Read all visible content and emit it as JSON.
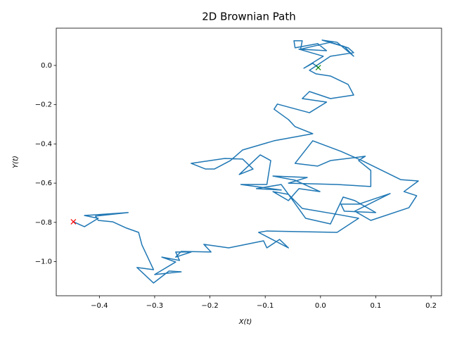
{
  "chart_data": {
    "type": "line",
    "title": "2D Brownian Path",
    "xlabel": "X(t)",
    "ylabel": "Y(t)",
    "x": [
      -0.004,
      -0.014,
      -0.03,
      0.005,
      -0.039,
      0.011,
      -0.005,
      -0.046,
      -0.048,
      -0.033,
      -0.036,
      0.018,
      0.043,
      0.06,
      0.03,
      0.003,
      0.05,
      0.06,
      0.018,
      -0.02,
      -0.008,
      0.018,
      0.05,
      0.06,
      0.018,
      -0.02,
      -0.033,
      0.011,
      -0.02,
      -0.078,
      -0.084,
      -0.058,
      -0.046,
      -0.014,
      -0.084,
      -0.141,
      -0.163,
      -0.192,
      -0.208,
      -0.234,
      -0.173,
      -0.141,
      -0.122,
      -0.147,
      -0.109,
      -0.09,
      -0.097,
      -0.144,
      -0.071,
      -0.116,
      -0.071,
      -0.058,
      -0.086,
      -0.058,
      -0.039,
      -0.001,
      -0.046,
      -0.086,
      -0.024,
      -0.058,
      0.03,
      0.091,
      0.091,
      0.069,
      0.081,
      0.018,
      -0.005,
      -0.046,
      -0.014,
      0.037,
      0.075,
      0.145,
      0.177,
      0.151,
      0.174,
      0.16,
      0.091,
      0.062,
      0.126,
      0.069,
      0.037,
      0.043,
      0.1,
      0.062,
      0.041,
      0.018,
      -0.027,
      -0.058,
      -0.033,
      0.034,
      0.069,
      0.03,
      -0.097,
      -0.112,
      -0.058,
      -0.074,
      -0.097,
      -0.103,
      -0.166,
      -0.211,
      -0.198,
      -0.252,
      -0.262,
      -0.234,
      -0.262,
      -0.255,
      -0.287,
      -0.262,
      -0.3,
      -0.252,
      -0.274,
      -0.302,
      -0.332,
      -0.302,
      -0.323,
      -0.329,
      -0.351,
      -0.376,
      -0.402,
      -0.407,
      -0.348,
      -0.427,
      -0.402,
      -0.427,
      -0.447
    ],
    "series": [
      {
        "color": "#1f77b4",
        "values": [
          -0.011,
          0.011,
          -0.014,
          0.047,
          0.083,
          0.075,
          0.111,
          0.09,
          0.126,
          0.126,
          0.083,
          0.118,
          0.097,
          0.047,
          0.118,
          0.129,
          0.09,
          0.065,
          0.047,
          -0.025,
          -0.043,
          -0.054,
          -0.097,
          -0.151,
          -0.169,
          -0.133,
          -0.169,
          -0.187,
          -0.241,
          -0.197,
          -0.223,
          -0.276,
          -0.312,
          -0.348,
          -0.384,
          -0.431,
          -0.485,
          -0.528,
          -0.528,
          -0.499,
          -0.474,
          -0.477,
          -0.528,
          -0.556,
          -0.456,
          -0.485,
          -0.607,
          -0.607,
          -0.635,
          -0.628,
          -0.607,
          -0.657,
          -0.643,
          -0.689,
          -0.628,
          -0.643,
          -0.585,
          -0.564,
          -0.571,
          -0.6,
          -0.607,
          -0.617,
          -0.535,
          -0.485,
          -0.463,
          -0.485,
          -0.513,
          -0.499,
          -0.384,
          -0.438,
          -0.485,
          -0.582,
          -0.589,
          -0.643,
          -0.664,
          -0.725,
          -0.79,
          -0.743,
          -0.653,
          -0.707,
          -0.707,
          -0.743,
          -0.75,
          -0.689,
          -0.671,
          -0.808,
          -0.779,
          -0.657,
          -0.729,
          -0.761,
          -0.779,
          -0.851,
          -0.844,
          -0.851,
          -0.93,
          -0.887,
          -0.93,
          -0.894,
          -0.93,
          -0.912,
          -0.951,
          -0.948,
          -0.977,
          -0.951,
          -0.951,
          -0.994,
          -0.977,
          -1.002,
          -1.066,
          -1.052,
          -1.048,
          -1.109,
          -1.03,
          -1.041,
          -0.915,
          -0.851,
          -0.829,
          -0.797,
          -0.79,
          -0.768,
          -0.75,
          -0.765,
          -0.779,
          -0.822,
          -0.797
        ]
      }
    ],
    "start_color": "green",
    "end_color": "red",
    "xlim": [
      -0.478,
      0.219
    ],
    "ylim": [
      -1.174,
      0.19
    ],
    "xticks": [
      {
        "value": -0.4,
        "label": "−0.4"
      },
      {
        "value": -0.3,
        "label": "−0.3"
      },
      {
        "value": -0.2,
        "label": "−0.2"
      },
      {
        "value": -0.1,
        "label": "−0.1"
      },
      {
        "value": 0,
        "label": "0.0"
      },
      {
        "value": 0.1,
        "label": "0.1"
      },
      {
        "value": 0.2,
        "label": "0.2"
      }
    ],
    "yticks": [
      {
        "value": 0,
        "label": "0.0"
      },
      {
        "value": -0.2,
        "label": "−0.2"
      },
      {
        "value": -0.4,
        "label": "−0.4"
      },
      {
        "value": -0.6,
        "label": "−0.6"
      },
      {
        "value": -0.8,
        "label": "−0.8"
      },
      {
        "value": -1.0,
        "label": "−1.0"
      }
    ]
  }
}
